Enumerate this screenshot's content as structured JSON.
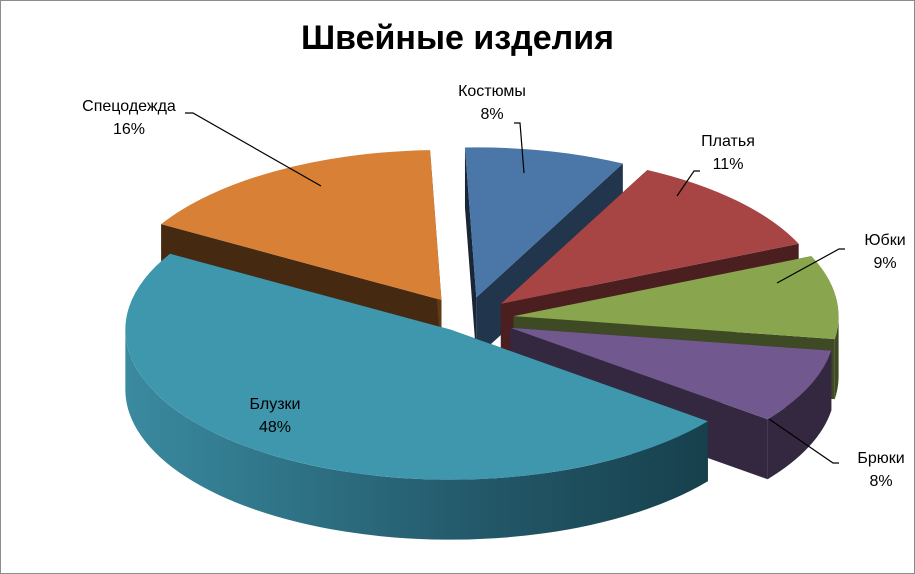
{
  "chart_data": {
    "type": "pie",
    "title": "Швейные изделия",
    "three_d": true,
    "exploded": true,
    "legend": "none",
    "categories": [
      "Костюмы",
      "Платья",
      "Юбки",
      "Брюки",
      "Блузки",
      "Спецодежда"
    ],
    "values": [
      8,
      11,
      9,
      8,
      48,
      16
    ],
    "labels": [
      "8%",
      "11%",
      "9%",
      "8%",
      "48%",
      "16%"
    ],
    "colors": [
      "#4a76a8",
      "#a74545",
      "#89a54e",
      "#71588f",
      "#3f97ad",
      "#d78036"
    ]
  }
}
